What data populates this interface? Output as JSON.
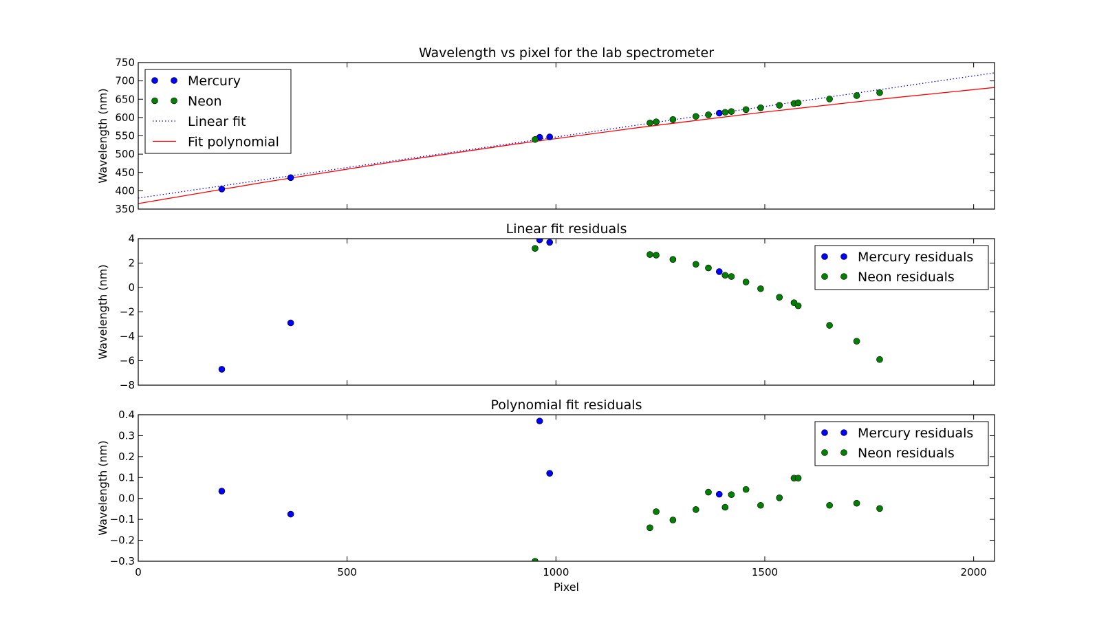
{
  "chart_data": [
    {
      "type": "scatter",
      "title": "Wavelength vs pixel for the lab spectrometer",
      "xlabel": "",
      "ylabel": "Wavelength (nm)",
      "xlim": [
        0,
        2050
      ],
      "ylim": [
        350,
        750
      ],
      "xticks": [
        0,
        500,
        1000,
        1500,
        2000
      ],
      "yticks": [
        350,
        400,
        450,
        500,
        550,
        600,
        650,
        700,
        750
      ],
      "legend": "upper-left",
      "series": [
        {
          "name": "Mercury",
          "kind": "points",
          "color": "#0000ff",
          "x": [
            200,
            365,
            961,
            985,
            1391
          ],
          "y": [
            404.7,
            435.8,
            546.1,
            547.0,
            611.9
          ]
        },
        {
          "name": "Neon",
          "kind": "points",
          "color": "#008000",
          "x": [
            950,
            1225,
            1240,
            1280,
            1335,
            1365,
            1405,
            1420,
            1455,
            1490,
            1535,
            1570,
            1580,
            1655,
            1720,
            1775
          ],
          "y": [
            540.1,
            585.2,
            588.2,
            594.5,
            603.0,
            607.4,
            614.3,
            616.4,
            621.7,
            626.6,
            633.4,
            638.3,
            640.2,
            650.7,
            659.9,
            667.8
          ]
        },
        {
          "name": "Linear fit",
          "kind": "line",
          "style": "dotted",
          "color": "#0000ff",
          "x": [
            0,
            2050
          ],
          "y": [
            380,
            722
          ]
        },
        {
          "name": "Fit polynomial",
          "kind": "line",
          "style": "solid",
          "color": "#ff0000",
          "x": [
            0,
            300,
            600,
            900,
            1200,
            1500,
            1800,
            2050
          ],
          "y": [
            365,
            423,
            477,
            527,
            573,
            615,
            653,
            682
          ]
        }
      ]
    },
    {
      "type": "scatter",
      "title": "Linear fit residuals",
      "xlabel": "",
      "ylabel": "Wavelength (nm)",
      "xlim": [
        0,
        2050
      ],
      "ylim": [
        -8,
        4
      ],
      "xticks": [
        0,
        500,
        1000,
        1500,
        2000
      ],
      "yticks": [
        -8,
        -6,
        -4,
        -2,
        0,
        2,
        4
      ],
      "legend": "upper-right",
      "series": [
        {
          "name": "Mercury residuals",
          "kind": "points",
          "color": "#0000ff",
          "x": [
            200,
            365,
            961,
            985,
            1391
          ],
          "y": [
            -6.7,
            -2.9,
            3.9,
            3.7,
            1.3
          ]
        },
        {
          "name": "Neon residuals",
          "kind": "points",
          "color": "#008000",
          "x": [
            950,
            1225,
            1240,
            1280,
            1335,
            1365,
            1405,
            1420,
            1455,
            1490,
            1535,
            1570,
            1580,
            1655,
            1720,
            1775
          ],
          "y": [
            3.2,
            2.7,
            2.65,
            2.3,
            1.9,
            1.6,
            1.0,
            0.9,
            0.45,
            -0.1,
            -0.8,
            -1.25,
            -1.5,
            -3.1,
            -4.4,
            -5.9
          ]
        }
      ]
    },
    {
      "type": "scatter",
      "title": "Polynomial fit residuals",
      "xlabel": "Pixel",
      "ylabel": "Wavelength (nm)",
      "xlim": [
        0,
        2050
      ],
      "ylim": [
        -0.3,
        0.4
      ],
      "xticks": [
        0,
        500,
        1000,
        1500,
        2000
      ],
      "yticks": [
        -0.3,
        -0.2,
        -0.1,
        0.0,
        0.1,
        0.2,
        0.3,
        0.4
      ],
      "legend": "upper-right",
      "series": [
        {
          "name": "Mercury residuals",
          "kind": "points",
          "color": "#0000ff",
          "x": [
            200,
            365,
            961,
            985,
            1391
          ],
          "y": [
            0.035,
            -0.075,
            0.37,
            0.12,
            0.02
          ]
        },
        {
          "name": "Neon residuals",
          "kind": "points",
          "color": "#008000",
          "x": [
            950,
            1225,
            1240,
            1280,
            1335,
            1365,
            1405,
            1420,
            1455,
            1490,
            1535,
            1570,
            1580,
            1655,
            1720,
            1775
          ],
          "y": [
            -0.3,
            -0.14,
            -0.063,
            -0.103,
            -0.053,
            0.03,
            -0.042,
            0.018,
            0.043,
            -0.033,
            0.003,
            0.097,
            0.097,
            -0.033,
            -0.023,
            -0.048
          ]
        }
      ]
    }
  ]
}
